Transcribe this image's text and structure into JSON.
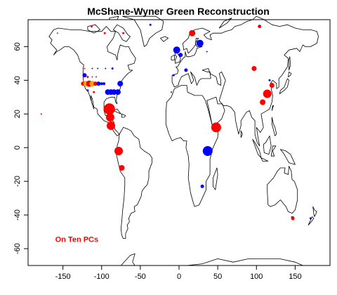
{
  "chart_data": {
    "type": "scatter",
    "title": "McShane-Wyner Green Reconstruction",
    "xlabel": "",
    "ylabel": "",
    "xlim": [
      -195,
      195
    ],
    "ylim": [
      -70,
      76
    ],
    "x_ticks": [
      -150,
      -100,
      -50,
      0,
      50,
      100,
      150
    ],
    "y_ticks": [
      -60,
      -40,
      -20,
      0,
      20,
      40,
      60
    ],
    "grid": false,
    "annotation": {
      "text": "On Ten PCs",
      "lon": -160,
      "lat": -56,
      "color": "#ff0000"
    },
    "colors": {
      "red": "#ff0000",
      "blue": "#0000ff",
      "orange": "#ffa500"
    },
    "points": [
      {
        "lon": -157,
        "lat": 68,
        "size": 1,
        "color": "red"
      },
      {
        "lon": -118,
        "lat": 42,
        "size": 1.5,
        "color": "red"
      },
      {
        "lon": -112,
        "lat": 42,
        "size": 1,
        "color": "red"
      },
      {
        "lon": -107,
        "lat": 42,
        "size": 1,
        "color": "red"
      },
      {
        "lon": -122,
        "lat": 47,
        "size": 1,
        "color": "red"
      },
      {
        "lon": -112,
        "lat": 47,
        "size": 1,
        "color": "blue"
      },
      {
        "lon": -105,
        "lat": 47,
        "size": 1,
        "color": "blue"
      },
      {
        "lon": -95,
        "lat": 47,
        "size": 1,
        "color": "blue"
      },
      {
        "lon": -122,
        "lat": 43,
        "size": 3,
        "color": "blue"
      },
      {
        "lon": -124,
        "lat": 38,
        "size": 3,
        "color": "red"
      },
      {
        "lon": -120,
        "lat": 38,
        "size": 4,
        "color": "orange"
      },
      {
        "lon": -116,
        "lat": 38,
        "size": 4.5,
        "color": "red"
      },
      {
        "lon": -112,
        "lat": 38,
        "size": 4,
        "color": "orange"
      },
      {
        "lon": -108,
        "lat": 38,
        "size": 3,
        "color": "red"
      },
      {
        "lon": -104,
        "lat": 38,
        "size": 3,
        "color": "blue"
      },
      {
        "lon": -100,
        "lat": 38,
        "size": 2,
        "color": "blue"
      },
      {
        "lon": -97,
        "lat": 38,
        "size": 2,
        "color": "blue"
      },
      {
        "lon": -118,
        "lat": 34,
        "size": 1.5,
        "color": "blue"
      },
      {
        "lon": -110,
        "lat": 33,
        "size": 1.5,
        "color": "red"
      },
      {
        "lon": -92,
        "lat": 33,
        "size": 4,
        "color": "blue"
      },
      {
        "lon": -88,
        "lat": 33,
        "size": 4,
        "color": "blue"
      },
      {
        "lon": -84,
        "lat": 33,
        "size": 4,
        "color": "blue"
      },
      {
        "lon": -79,
        "lat": 33,
        "size": 4,
        "color": "blue"
      },
      {
        "lon": -76,
        "lat": 38,
        "size": 4,
        "color": "blue"
      },
      {
        "lon": -86,
        "lat": 47,
        "size": 1.5,
        "color": "blue"
      },
      {
        "lon": -90,
        "lat": 23,
        "size": 8,
        "color": "red"
      },
      {
        "lon": -89,
        "lat": 18,
        "size": 6,
        "color": "red"
      },
      {
        "lon": -88,
        "lat": 13,
        "size": 6,
        "color": "red"
      },
      {
        "lon": -78,
        "lat": -2,
        "size": 6,
        "color": "red"
      },
      {
        "lon": -74,
        "lat": -12,
        "size": 4,
        "color": "red"
      },
      {
        "lon": -178,
        "lat": 20,
        "size": 1,
        "color": "red"
      },
      {
        "lon": -113,
        "lat": 72,
        "size": 1.5,
        "color": "red"
      },
      {
        "lon": -96,
        "lat": 68,
        "size": 1.5,
        "color": "red"
      },
      {
        "lon": -72,
        "lat": 68,
        "size": 1.5,
        "color": "red"
      },
      {
        "lon": -37,
        "lat": 73,
        "size": 1.5,
        "color": "blue"
      },
      {
        "lon": 17,
        "lat": 68,
        "size": 4.5,
        "color": "red"
      },
      {
        "lon": 27,
        "lat": 62,
        "size": 5,
        "color": "blue"
      },
      {
        "lon": -3,
        "lat": 58,
        "size": 5,
        "color": "blue"
      },
      {
        "lon": 2,
        "lat": 55,
        "size": 3,
        "color": "blue"
      },
      {
        "lon": 9,
        "lat": 46,
        "size": 2.5,
        "color": "blue"
      },
      {
        "lon": -7,
        "lat": 43,
        "size": 1.5,
        "color": "blue"
      },
      {
        "lon": -10,
        "lat": 33,
        "size": 1,
        "color": "blue"
      },
      {
        "lon": 36,
        "lat": 57,
        "size": 1,
        "color": "blue"
      },
      {
        "lon": 104,
        "lat": 72,
        "size": 2.5,
        "color": "red"
      },
      {
        "lon": 97,
        "lat": 47,
        "size": 3.5,
        "color": "red"
      },
      {
        "lon": 117,
        "lat": 40,
        "size": 1.5,
        "color": "blue"
      },
      {
        "lon": 120,
        "lat": 37,
        "size": 3.5,
        "color": "red"
      },
      {
        "lon": 114,
        "lat": 32,
        "size": 6,
        "color": "red"
      },
      {
        "lon": 108,
        "lat": 27,
        "size": 4,
        "color": "red"
      },
      {
        "lon": 48,
        "lat": 12,
        "size": 7,
        "color": "red"
      },
      {
        "lon": 45,
        "lat": 12,
        "size": 3,
        "color": "red"
      },
      {
        "lon": 37,
        "lat": -2,
        "size": 7,
        "color": "blue"
      },
      {
        "lon": 30,
        "lat": -23,
        "size": 2.5,
        "color": "blue"
      },
      {
        "lon": 147,
        "lat": -42,
        "size": 2.5,
        "color": "red"
      },
      {
        "lon": 170,
        "lat": -42,
        "size": 1.5,
        "color": "blue"
      }
    ]
  }
}
